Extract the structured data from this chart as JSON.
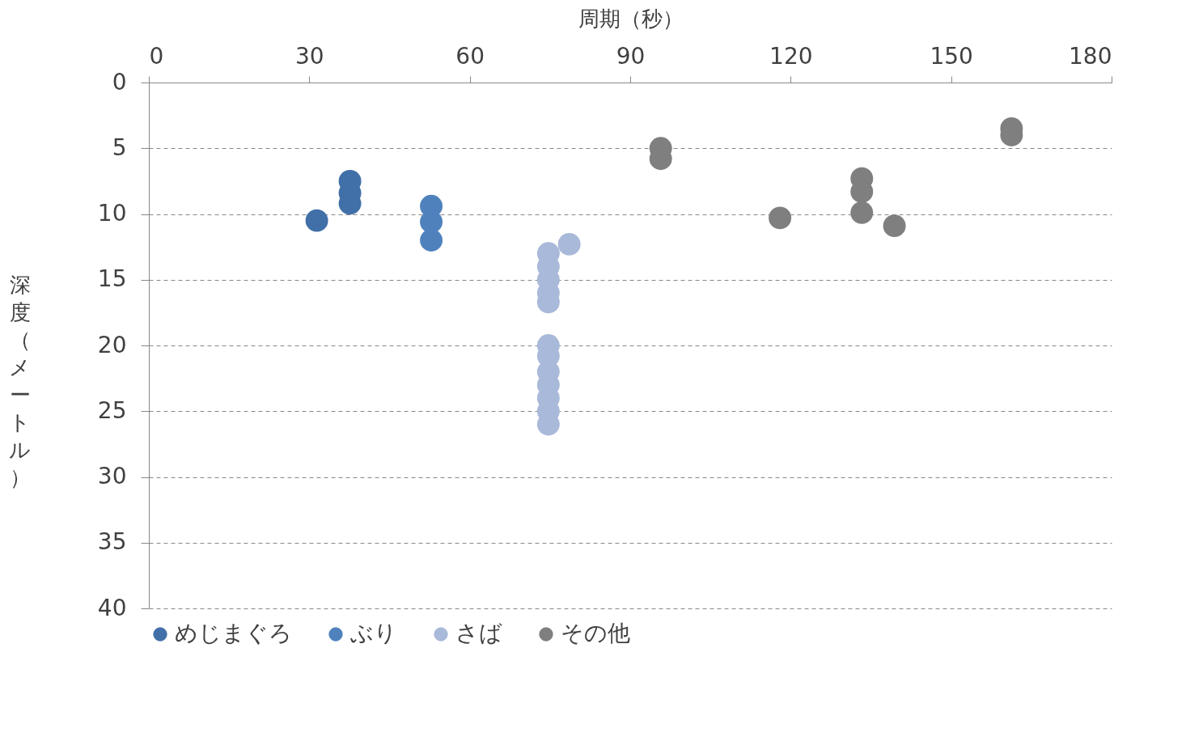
{
  "chart_data": {
    "type": "scatter",
    "xlabel": "周期（秒）",
    "ylabel": "深度（メートル）",
    "xlim": [
      0,
      180
    ],
    "xticks": [
      0,
      30,
      60,
      90,
      120,
      150,
      180
    ],
    "ylim": [
      40,
      0
    ],
    "yticks": [
      0,
      5,
      10,
      15,
      20,
      25,
      30,
      35,
      40
    ],
    "grid": "y",
    "legend": "bottom",
    "marker": "circle",
    "series": [
      {
        "name": "めじまぐろ",
        "color": "#4170a8",
        "x": [
          31.4,
          37.6,
          37.6,
          37.6
        ],
        "values": [
          10.5,
          7.5,
          8.4,
          9.2
        ]
      },
      {
        "name": "ぶり",
        "color": "#4f81bd",
        "x": [
          52.8,
          52.8,
          52.8
        ],
        "values": [
          9.4,
          10.6,
          12.0
        ]
      },
      {
        "name": "さば",
        "color": "#a9b9d9",
        "x": [
          74.7,
          74.7,
          74.7,
          74.7,
          74.7,
          74.7,
          74.7,
          74.7,
          74.7,
          74.7,
          74.7,
          74.7,
          78.6
        ],
        "values": [
          13,
          14,
          15,
          16,
          16.7,
          20,
          20.8,
          22,
          23,
          24,
          25,
          26,
          12.3
        ]
      },
      {
        "name": "その他",
        "color": "#7f7f7f",
        "x": [
          95.7,
          95.7,
          118,
          133.3,
          133.3,
          133.3,
          139.4,
          161.3,
          161.3
        ],
        "values": [
          5.0,
          5.8,
          10.3,
          7.3,
          8.3,
          9.9,
          10.9,
          3.5,
          4.0
        ]
      }
    ]
  }
}
